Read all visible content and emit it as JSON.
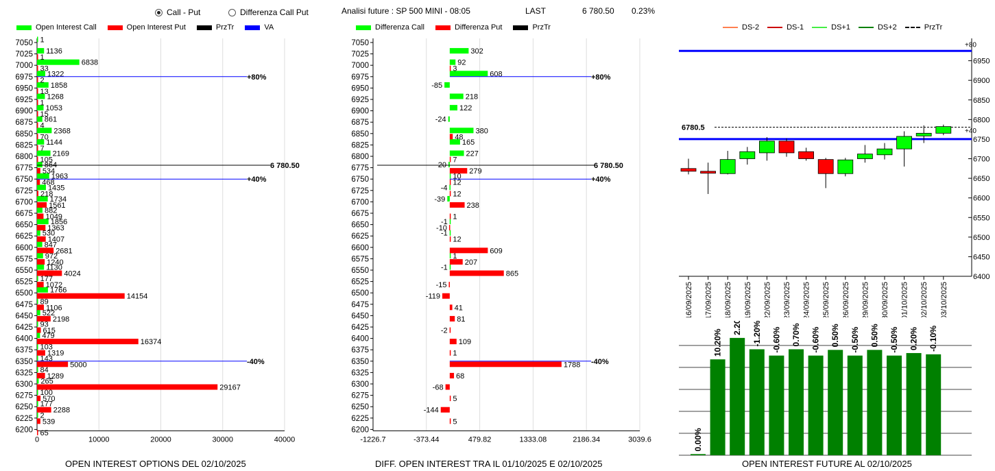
{
  "toolbar": {
    "radio_call_put": "Call - Put",
    "radio_diff_call_put": "Differenza Call Put",
    "selected": "call_put",
    "title": "Analisi future : SP 500 MINI - 08:05",
    "last_label": "LAST",
    "last_value": "6 780.50",
    "change": "0.23%"
  },
  "colors": {
    "call": "#00ff00",
    "put": "#ff0000",
    "przTr": "#000000",
    "va": "#0000ff",
    "ds_minus2": "#ff7f50",
    "ds_minus1": "#cc0000",
    "ds_plus1": "#44ee44",
    "ds_plus2": "#008000",
    "future_bar": "#008000"
  },
  "chart_data": [
    {
      "type": "bar",
      "orientation": "horizontal",
      "title": "OPEN INTEREST OPTIONS DEL 02/10/2025",
      "legend": [
        "Open Interest Call",
        "Open Interest Put",
        "PrzTr",
        "VA"
      ],
      "categories": [
        7050,
        7025,
        7000,
        6975,
        6950,
        6925,
        6900,
        6875,
        6850,
        6825,
        6800,
        6775,
        6750,
        6725,
        6700,
        6675,
        6650,
        6625,
        6600,
        6575,
        6550,
        6525,
        6500,
        6475,
        6450,
        6425,
        6400,
        6375,
        6350,
        6325,
        6300,
        6275,
        6250,
        6225,
        6200
      ],
      "series": [
        {
          "name": "Open Interest Call",
          "values": [
            1,
            1136,
            6838,
            1322,
            1858,
            1268,
            1053,
            861,
            2368,
            1144,
            2169,
            864,
            1963,
            1435,
            1734,
            882,
            1856,
            530,
            847,
            972,
            1130,
            177,
            1766,
            89,
            522,
            93,
            479,
            103,
            143,
            84,
            265,
            100,
            177,
            2,
            null
          ]
        },
        {
          "name": "Open Interest Put",
          "values": [
            null,
            1,
            33,
            2,
            13,
            1,
            15,
            4,
            70,
            7,
            105,
            534,
            468,
            218,
            1561,
            1049,
            1363,
            1407,
            2681,
            1240,
            4024,
            1072,
            14154,
            1106,
            2198,
            615,
            16374,
            1319,
            5000,
            1289,
            29167,
            570,
            2288,
            539,
            65
          ]
        }
      ],
      "xlim": [
        0,
        40000
      ],
      "xticks": [
        0,
        10000,
        20000,
        30000,
        40000
      ],
      "przTr": {
        "value": 6780.5,
        "label": "6 780.50"
      },
      "va_lines": [
        {
          "strike": 6975,
          "label": "+80%"
        },
        {
          "strike": 6750,
          "label": "+40%"
        },
        {
          "strike": 6350,
          "label": "-40%"
        }
      ]
    },
    {
      "type": "bar",
      "orientation": "horizontal",
      "title": "DIFF. OPEN INTEREST TRA IL 01/10/2025 E 02/10/2025",
      "legend": [
        "Differenza Call",
        "Differenza Put",
        "PrzTr"
      ],
      "categories": [
        7050,
        7025,
        7000,
        6975,
        6950,
        6925,
        6900,
        6875,
        6850,
        6825,
        6800,
        6775,
        6750,
        6725,
        6700,
        6675,
        6650,
        6625,
        6600,
        6575,
        6550,
        6525,
        6500,
        6475,
        6450,
        6425,
        6400,
        6375,
        6350,
        6325,
        6300,
        6275,
        6250,
        6225,
        6200
      ],
      "series": [
        {
          "name": "Differenza Call",
          "values": [
            null,
            302,
            92,
            608,
            -85,
            218,
            122,
            -24,
            380,
            165,
            227,
            -20,
            10,
            -4,
            -39,
            null,
            -1,
            -1,
            null,
            1,
            -1,
            null,
            null,
            null,
            null,
            null,
            null,
            null,
            null,
            null,
            null,
            null,
            null,
            null,
            null
          ]
        },
        {
          "name": "Differenza Put",
          "values": [
            null,
            null,
            3,
            null,
            null,
            null,
            null,
            null,
            48,
            null,
            7,
            279,
            12,
            12,
            238,
            1,
            -10,
            12,
            609,
            207,
            865,
            -15,
            -119,
            41,
            81,
            -2,
            109,
            1,
            1788,
            68,
            -68,
            5,
            -144,
            5,
            null
          ]
        }
      ],
      "xlim": [
        -1226.7,
        3039.6
      ],
      "xticks": [
        -1226.7,
        -373.44,
        479.82,
        1333.08,
        2186.34,
        3039.6
      ],
      "przTr": {
        "value": 6780.5,
        "label": "6 780.50"
      },
      "va_lines": [
        {
          "strike": 6975,
          "label": "+80%"
        },
        {
          "strike": 6750,
          "label": "+40%"
        },
        {
          "strike": 6350,
          "label": "-40%"
        }
      ]
    },
    {
      "type": "candlestick",
      "legend": [
        "DS-2",
        "DS-1",
        "DS+1",
        "DS+2",
        "PrzTr"
      ],
      "x": [
        "16/09/2025",
        "17/09/2025",
        "18/09/2025",
        "19/09/2025",
        "22/09/2025",
        "23/09/2025",
        "24/09/2025",
        "25/09/2025",
        "26/09/2025",
        "29/09/2025",
        "30/09/2025",
        "01/10/2025",
        "02/10/2025",
        "03/10/2025"
      ],
      "ohlc": [
        {
          "o": 6675,
          "h": 6700,
          "l": 6660,
          "c": 6668
        },
        {
          "o": 6668,
          "h": 6690,
          "l": 6610,
          "c": 6663
        },
        {
          "o": 6662,
          "h": 6720,
          "l": 6660,
          "c": 6698
        },
        {
          "o": 6700,
          "h": 6730,
          "l": 6685,
          "c": 6718
        },
        {
          "o": 6715,
          "h": 6755,
          "l": 6695,
          "c": 6745
        },
        {
          "o": 6745,
          "h": 6752,
          "l": 6705,
          "c": 6715
        },
        {
          "o": 6718,
          "h": 6728,
          "l": 6695,
          "c": 6700
        },
        {
          "o": 6698,
          "h": 6702,
          "l": 6625,
          "c": 6662
        },
        {
          "o": 6662,
          "h": 6702,
          "l": 6655,
          "c": 6697
        },
        {
          "o": 6700,
          "h": 6735,
          "l": 6690,
          "c": 6712
        },
        {
          "o": 6710,
          "h": 6740,
          "l": 6698,
          "c": 6725
        },
        {
          "o": 6725,
          "h": 6770,
          "l": 6680,
          "c": 6757
        },
        {
          "o": 6758,
          "h": 6785,
          "l": 6740,
          "c": 6765
        },
        {
          "o": 6765,
          "h": 6787,
          "l": 6760,
          "c": 6782
        }
      ],
      "ylim": [
        6400,
        7000
      ],
      "yticks": [
        6400,
        6450,
        6500,
        6550,
        6600,
        6650,
        6700,
        6750,
        6800,
        6850,
        6900,
        6950
      ],
      "przTr_label": "6780.5",
      "przTr_value": 6780.5,
      "ds_plus2_value": 6975,
      "ds_plus2_label": "+80",
      "ds_plus1_value": 6750,
      "ds_plus1_label": "+40"
    },
    {
      "type": "bar",
      "title": "OPEN INTEREST FUTURE AL 02/10/2025",
      "categories": [
        "16/09/2025",
        "17/09/2025",
        "18/09/2025",
        "19/09/2025",
        "22/09/2025",
        "23/09/2025",
        "24/09/2025",
        "25/09/2025",
        "26/09/2025",
        "29/09/2025",
        "30/09/2025",
        "01/10/2025",
        "02/10/2025"
      ],
      "values": [
        0.9,
        76,
        93,
        84,
        79,
        84,
        79,
        83.5,
        79,
        83.5,
        79,
        81,
        80
      ],
      "data_labels": [
        "0.00%",
        "10.20%",
        "2.20%",
        "-1.20%",
        "-0.60%",
        "0.70%",
        "-0.60%",
        "0.50%",
        "-0.50%",
        "0.50%",
        "-0.50%",
        "0.20%",
        "-0.10%"
      ],
      "ylim": [
        0,
        100
      ]
    }
  ]
}
